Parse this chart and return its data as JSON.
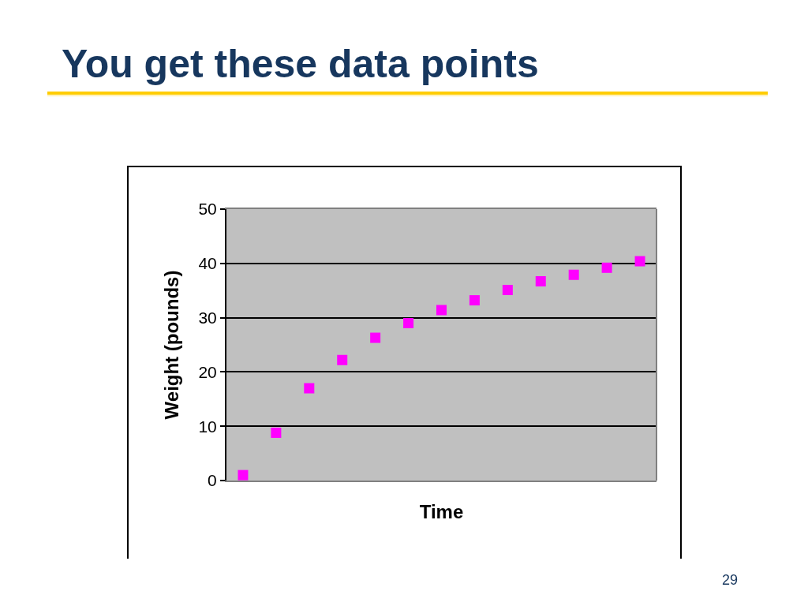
{
  "chart_data": {
    "type": "scatter",
    "title": "You get these data points",
    "xlabel": "Time",
    "ylabel": "Weight (pounds)",
    "categories": [
      null,
      null,
      null,
      null,
      null,
      null,
      null,
      null,
      null,
      null,
      null,
      null,
      null
    ],
    "values": [
      1.0,
      8.8,
      17.0,
      22.2,
      26.3,
      29.0,
      31.4,
      33.2,
      35.1,
      36.7,
      37.9,
      39.2,
      40.4
    ],
    "color": "#ff00ff",
    "ylim": [
      0,
      50
    ],
    "yticks": [
      0,
      10,
      20,
      30,
      40,
      50
    ],
    "grid": "y",
    "marker": "square",
    "tick_labels": "y",
    "annotations": [
      "29"
    ]
  }
}
